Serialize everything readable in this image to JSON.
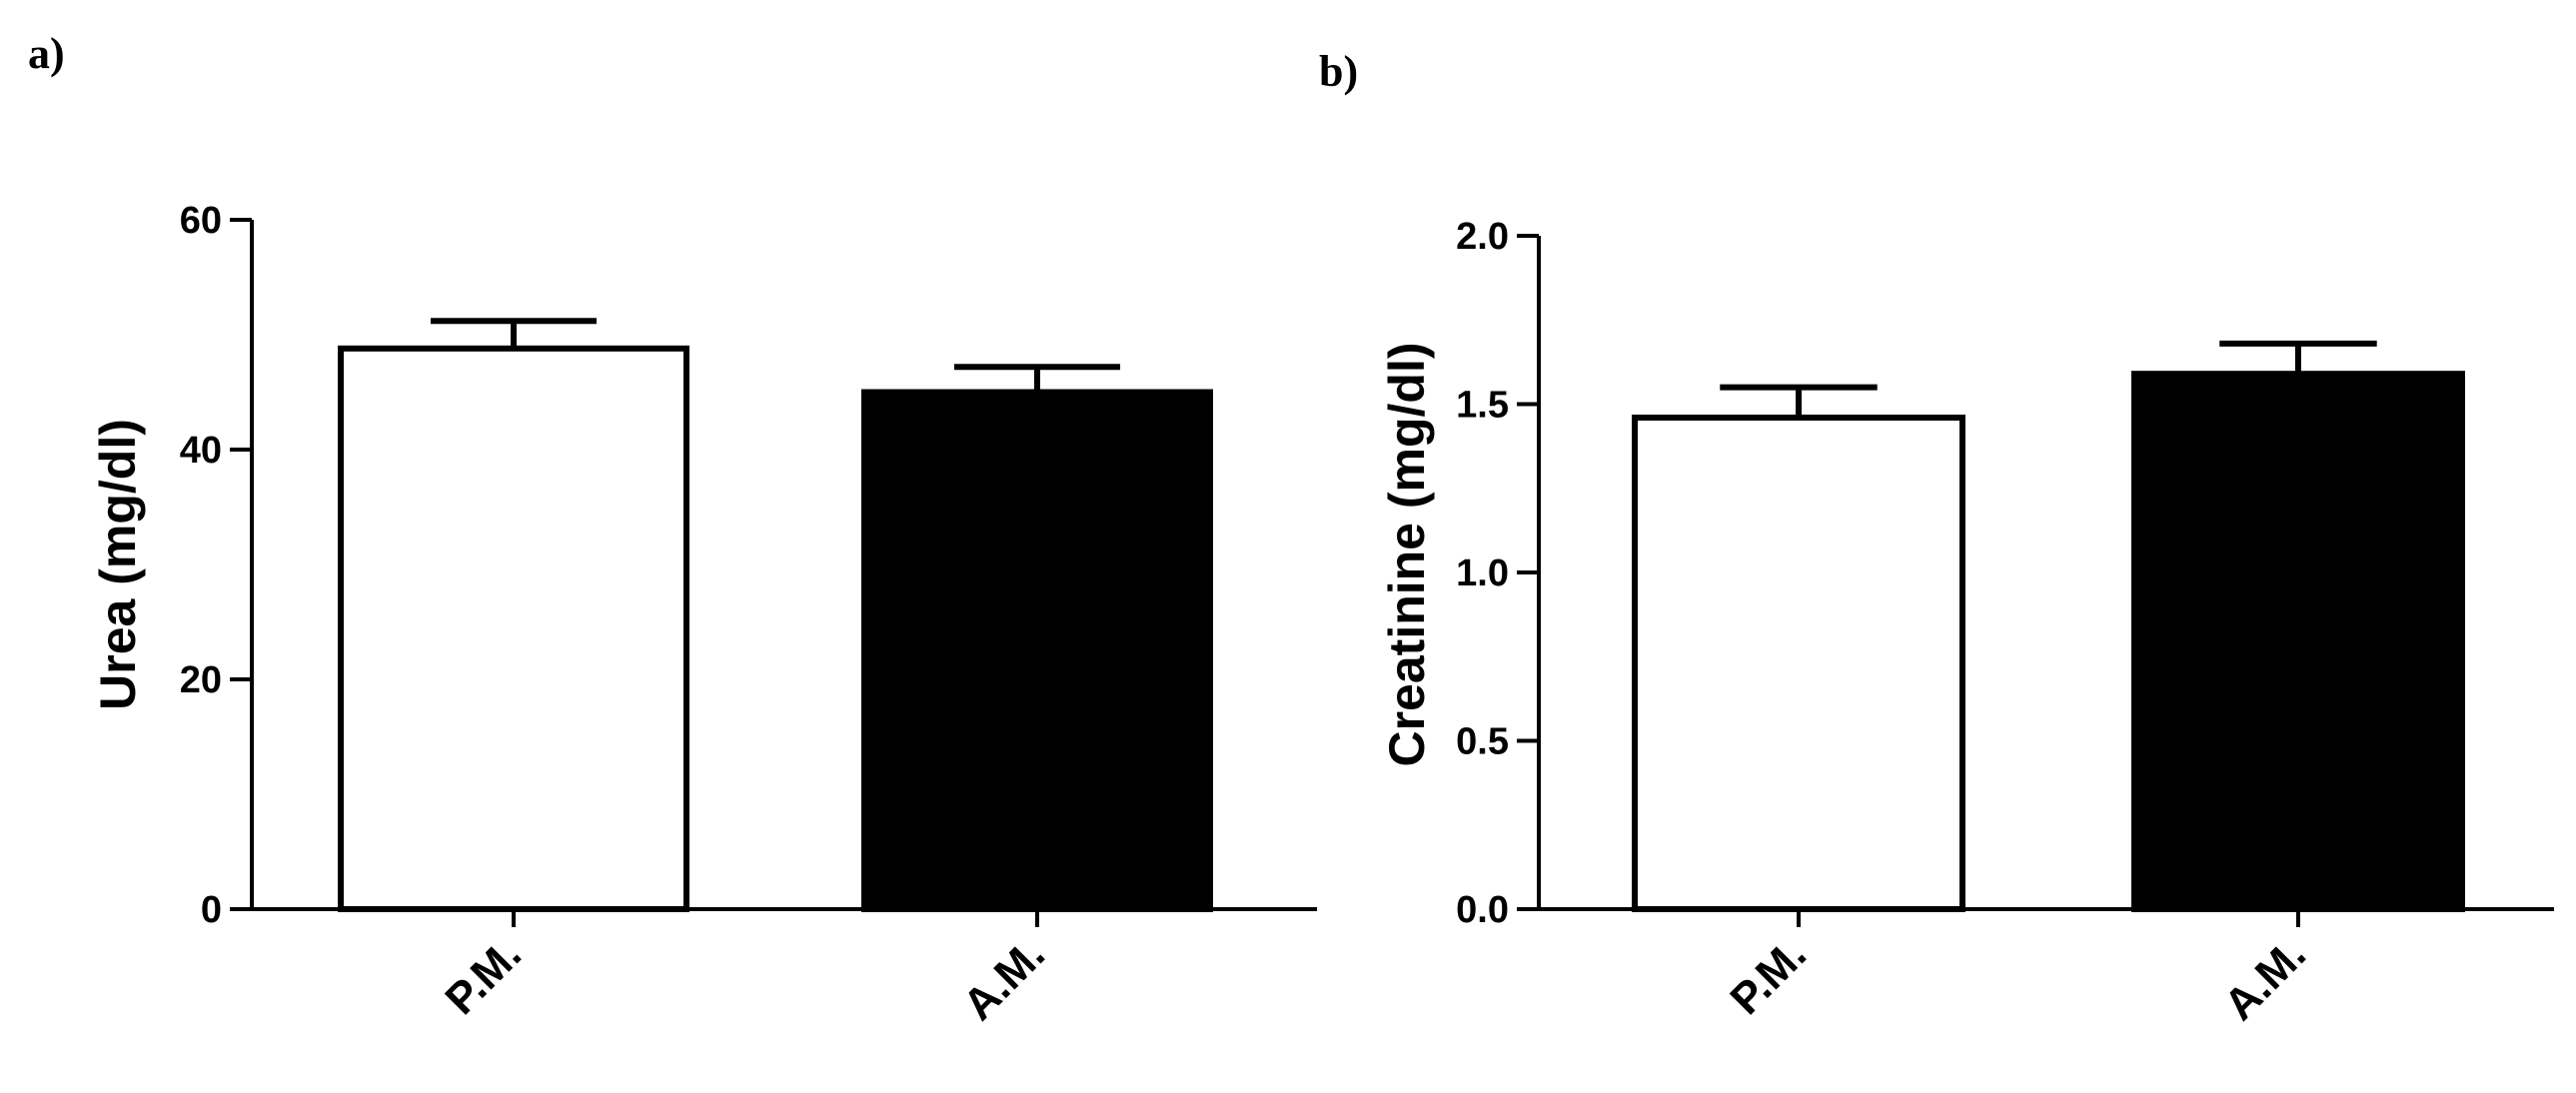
{
  "chart_data": [
    {
      "type": "bar",
      "panel_label": "a)",
      "categories": [
        "P.M.",
        "A.M."
      ],
      "values": [
        48.8,
        45.0
      ],
      "errors": [
        2.4,
        2.2
      ],
      "bar_fills": [
        "#ffffff",
        "#000000"
      ],
      "ylabel": "Urea (mg/dl)",
      "ylim": [
        0,
        60
      ],
      "yticks": [
        0,
        20,
        40,
        60
      ],
      "ytick_labels": [
        "0",
        "20",
        "40",
        "60"
      ]
    },
    {
      "type": "bar",
      "panel_label": "b)",
      "categories": [
        "P.M.",
        "A.M."
      ],
      "values": [
        1.46,
        1.59
      ],
      "errors": [
        0.09,
        0.09
      ],
      "bar_fills": [
        "#ffffff",
        "#000000"
      ],
      "ylabel": "Creatinine  (mg/dl)",
      "ylim": [
        0,
        2.0
      ],
      "yticks": [
        0,
        0.5,
        1.0,
        1.5,
        2.0
      ],
      "ytick_labels": [
        "0.0",
        "0.5",
        "1.0",
        "1.5",
        "2.0"
      ]
    }
  ]
}
